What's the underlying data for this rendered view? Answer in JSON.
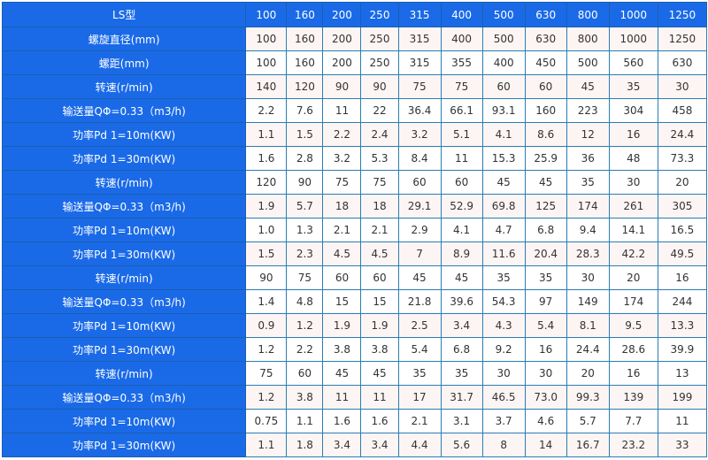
{
  "table": {
    "header_label": "LS型",
    "models": [
      "100",
      "160",
      "200",
      "250",
      "315",
      "400",
      "500",
      "630",
      "800",
      "1000",
      "1250"
    ],
    "rows": [
      {
        "label": "螺旋直径(mm)",
        "values": [
          "100",
          "160",
          "200",
          "250",
          "315",
          "400",
          "500",
          "630",
          "800",
          "1000",
          "1250"
        ]
      },
      {
        "label": "螺距(mm)",
        "values": [
          "100",
          "160",
          "200",
          "250",
          "315",
          "355",
          "400",
          "450",
          "500",
          "560",
          "630"
        ]
      },
      {
        "label": "转速(r/min)",
        "values": [
          "140",
          "120",
          "90",
          "90",
          "75",
          "75",
          "60",
          "60",
          "45",
          "35",
          "30"
        ]
      },
      {
        "label": "输送量QΦ=0.33（m3/h)",
        "values": [
          "2.2",
          "7.6",
          "11",
          "22",
          "36.4",
          "66.1",
          "93.1",
          "160",
          "223",
          "304",
          "458"
        ]
      },
      {
        "label": "功率Pd 1=10m(KW)",
        "values": [
          "1.1",
          "1.5",
          "2.2",
          "2.4",
          "3.2",
          "5.1",
          "4.1",
          "8.6",
          "12",
          "16",
          "24.4"
        ]
      },
      {
        "label": "功率Pd 1=30m(KW)",
        "values": [
          "1.6",
          "2.8",
          "3.2",
          "5.3",
          "8.4",
          "11",
          "15.3",
          "25.9",
          "36",
          "48",
          "73.3"
        ]
      },
      {
        "label": "转速(r/min)",
        "values": [
          "120",
          "90",
          "75",
          "75",
          "60",
          "60",
          "45",
          "45",
          "35",
          "30",
          "20"
        ]
      },
      {
        "label": "输送量QΦ=0.33（m3/h)",
        "values": [
          "1.9",
          "5.7",
          "18",
          "18",
          "29.1",
          "52.9",
          "69.8",
          "125",
          "174",
          "261",
          "305"
        ]
      },
      {
        "label": "功率Pd 1=10m(KW)",
        "values": [
          "1.0",
          "1.3",
          "2.1",
          "2.1",
          "2.9",
          "4.1",
          "4.7",
          "6.8",
          "9.4",
          "14.1",
          "16.5"
        ]
      },
      {
        "label": "功率Pd 1=30m(KW)",
        "values": [
          "1.5",
          "2.3",
          "4.5",
          "4.5",
          "7",
          "8.9",
          "11.6",
          "20.4",
          "28.3",
          "42.2",
          "49.5"
        ]
      },
      {
        "label": "转速(r/min)",
        "values": [
          "90",
          "75",
          "60",
          "60",
          "45",
          "45",
          "35",
          "35",
          "30",
          "20",
          "16"
        ]
      },
      {
        "label": "输送量QΦ=0.33（m3/h)",
        "values": [
          "1.4",
          "4.8",
          "15",
          "15",
          "21.8",
          "39.6",
          "54.3",
          "97",
          "149",
          "174",
          "244"
        ]
      },
      {
        "label": "功率Pd 1=10m(KW)",
        "values": [
          "0.9",
          "1.2",
          "1.9",
          "1.9",
          "2.5",
          "3.4",
          "4.3",
          "5.4",
          "8.1",
          "9.5",
          "13.3"
        ]
      },
      {
        "label": "功率Pd 1=30m(KW)",
        "values": [
          "1.2",
          "2.2",
          "3.8",
          "3.8",
          "5.4",
          "6.8",
          "9.2",
          "16",
          "24.4",
          "28.6",
          "39.9"
        ]
      },
      {
        "label": "转速(r/min)",
        "values": [
          "75",
          "60",
          "45",
          "45",
          "35",
          "35",
          "30",
          "30",
          "20",
          "16",
          "13"
        ]
      },
      {
        "label": "输送量QΦ=0.33（m3/h)",
        "values": [
          "1.2",
          "3.8",
          "11",
          "11",
          "17",
          "31.7",
          "46.5",
          "73.0",
          "99.3",
          "139",
          "199"
        ]
      },
      {
        "label": "功率Pd 1=10m(KW)",
        "values": [
          "0.75",
          "1.1",
          "1.6",
          "1.6",
          "2.1",
          "3.1",
          "3.7",
          "4.6",
          "5.7",
          "7.7",
          "11"
        ]
      },
      {
        "label": "功率Pd 1=30m(KW)",
        "values": [
          "1.1",
          "1.8",
          "3.4",
          "3.4",
          "4.4",
          "5.6",
          "8",
          "14",
          "16.7",
          "23.2",
          "33"
        ]
      }
    ]
  },
  "colors": {
    "header_bg": "#1a6ae8",
    "row_tint": "#fdf5f4",
    "border": "#2a7db3"
  }
}
